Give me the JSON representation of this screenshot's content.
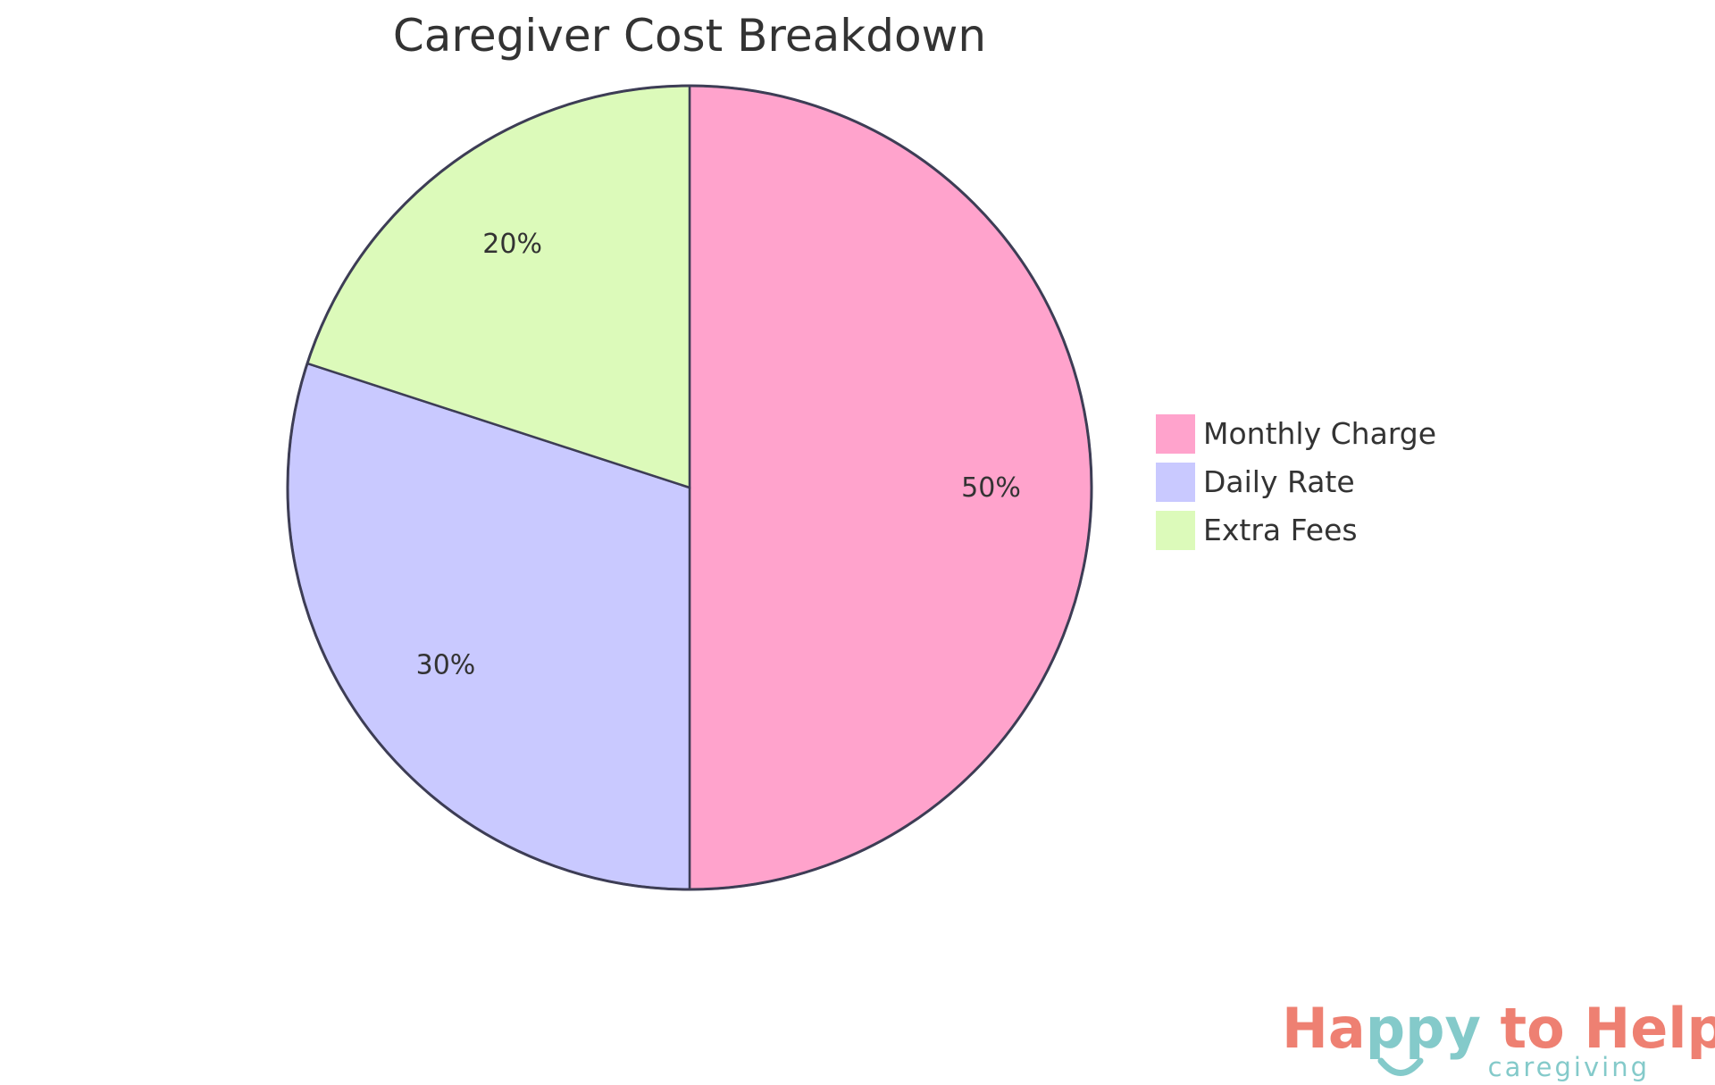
{
  "chart_data": {
    "type": "pie",
    "title": "Caregiver Cost Breakdown",
    "categories": [
      "Monthly Charge",
      "Daily Rate",
      "Extra Fees"
    ],
    "values": [
      50,
      30,
      20
    ],
    "labels": [
      "50%",
      "30%",
      "20%"
    ],
    "colors": [
      "#FFA3CC",
      "#C9C9FF",
      "#DCFABA"
    ],
    "stroke_color": "#3D3D55",
    "legend_position": "right"
  },
  "logo": {
    "text_main": "Happy to Help",
    "text_sub": "caregiving",
    "main_color": "#EE8072",
    "accent_color": "#84CACA"
  }
}
